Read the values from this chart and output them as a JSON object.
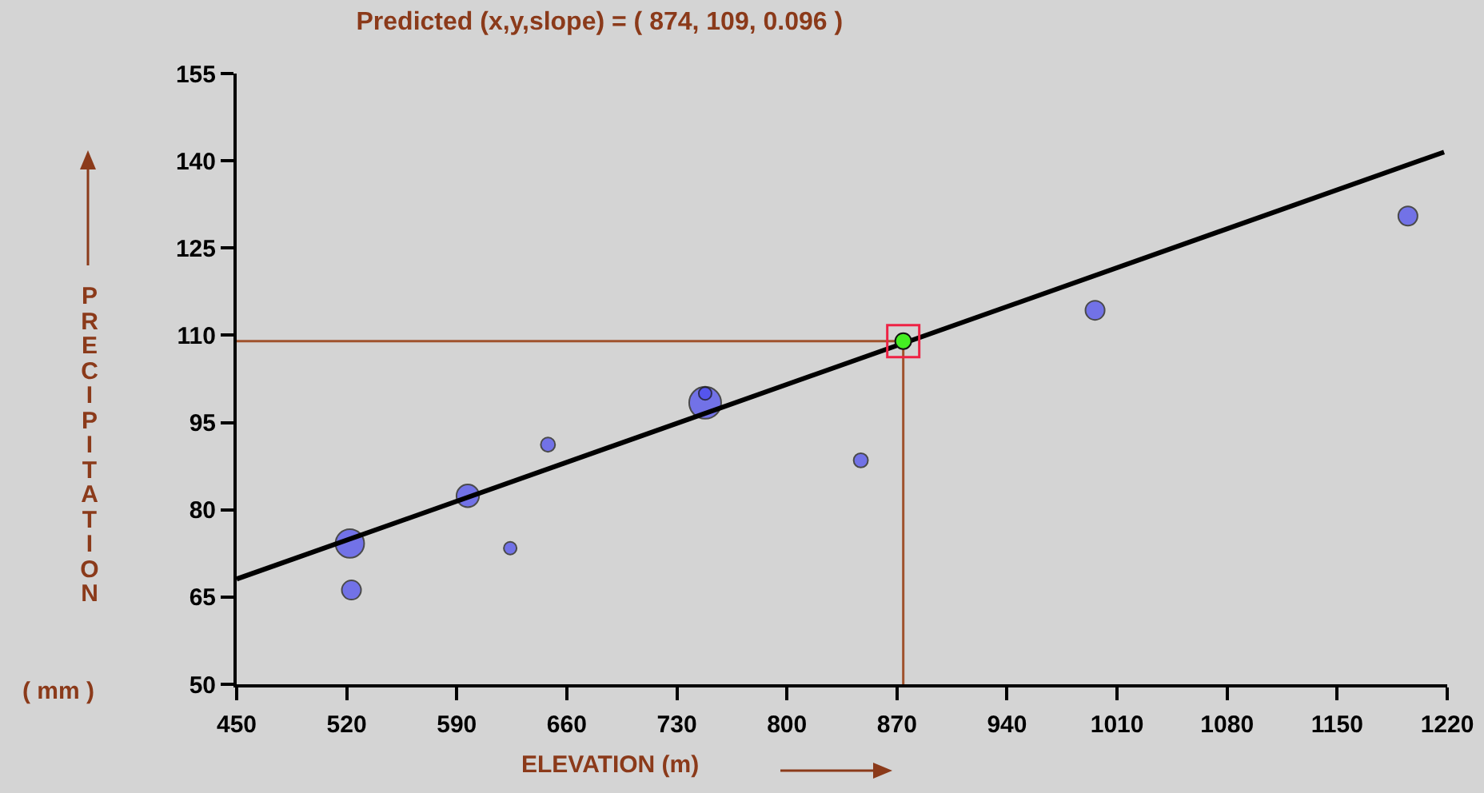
{
  "chart_data": {
    "type": "bubble",
    "title": "Predicted (x,y,slope) = ( 874, 109, 0.096 )",
    "xlabel": "ELEVATION (m)",
    "ylabel": "PRECIPITATION",
    "annotations": [
      "( mm )"
    ],
    "xlim": [
      450,
      1220
    ],
    "xticks": [
      450,
      520,
      590,
      660,
      730,
      800,
      870,
      940,
      1010,
      1080,
      1150,
      1220
    ],
    "ylim": [
      50,
      155
    ],
    "yticks": [
      50,
      65,
      80,
      95,
      110,
      125,
      140,
      155
    ],
    "grid": false,
    "legend": false,
    "series": [
      {
        "color": "#4a4af0",
        "x": [
          522,
          523,
          597,
          624,
          648,
          748,
          748,
          847,
          996,
          1195
        ],
        "values": [
          74.2,
          66.2,
          82.4,
          73.4,
          91.2,
          98.4,
          100,
          88.5,
          114.3,
          130.5
        ],
        "sizes": [
          0.8,
          0.36,
          0.5,
          0.16,
          0.2,
          1,
          0.16,
          0.2,
          0.36,
          0.36
        ]
      },
      {
        "type": "line",
        "color": "#000000",
        "x": [
          450,
          1218
        ],
        "values": [
          68.1,
          141.5
        ],
        "marker": "none",
        "line_style": "solid"
      },
      {
        "type": "scatter",
        "color": "#44ee22",
        "x": [
          874
        ],
        "values": [
          109
        ],
        "marker": "circle"
      }
    ],
    "ref_lines": [
      {
        "axis": "y",
        "value": 109,
        "color": "#a0522d"
      },
      {
        "axis": "x",
        "value": 874,
        "color": "#a0522d"
      }
    ]
  }
}
